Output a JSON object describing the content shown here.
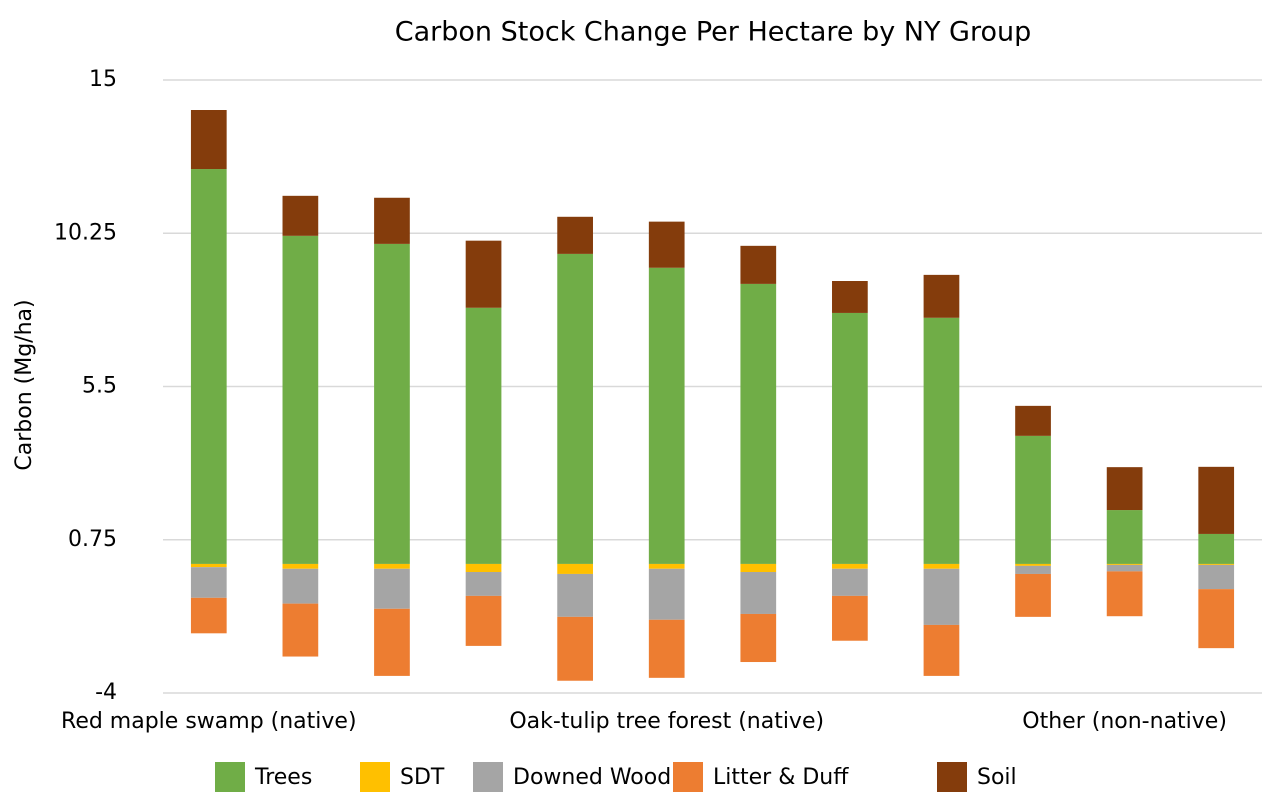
{
  "chart_data": {
    "type": "bar",
    "stacked": true,
    "title": "Carbon Stock Change Per Hectare by NY Group",
    "y_label": "Carbon  (Mg/ha)",
    "categories": [
      "Red maple swamp (native)",
      null,
      null,
      null,
      null,
      "Oak-tulip tree forest (native)",
      null,
      null,
      null,
      null,
      "Other (non-native)",
      null
    ],
    "series": [
      {
        "name": "Trees",
        "color": "#70ad47",
        "values": [
          12.24,
          10.17,
          9.92,
          7.94,
          9.61,
          9.18,
          8.68,
          7.78,
          7.63,
          3.97,
          1.67,
          0.93
        ]
      },
      {
        "name": "SDT",
        "color": "#ffc000",
        "values": [
          -0.1,
          -0.15,
          -0.15,
          -0.25,
          -0.31,
          -0.15,
          -0.25,
          -0.15,
          -0.15,
          -0.06,
          -0.03,
          -0.03
        ]
      },
      {
        "name": "Downed Wood",
        "color": "#a5a5a5",
        "values": [
          -0.95,
          -1.08,
          -1.24,
          -0.74,
          -1.33,
          -1.58,
          -1.3,
          -0.84,
          -1.74,
          -0.25,
          -0.2,
          -0.75
        ]
      },
      {
        "name": "Litter & Duff",
        "color": "#ed7d31",
        "values": [
          -1.1,
          -1.64,
          -2.08,
          -1.55,
          -1.98,
          -1.8,
          -1.49,
          -1.39,
          -1.58,
          -1.33,
          -1.39,
          -1.83
        ]
      },
      {
        "name": "Soil",
        "color": "#843c0c",
        "values": [
          1.83,
          1.24,
          1.43,
          2.08,
          1.15,
          1.43,
          1.18,
          0.99,
          1.33,
          0.93,
          1.33,
          2.08
        ]
      }
    ],
    "ylim": [
      -4,
      15
    ],
    "yticks": [
      -4,
      0.75,
      5.5,
      10.25,
      15
    ],
    "grid": true,
    "legend": "bottom"
  }
}
